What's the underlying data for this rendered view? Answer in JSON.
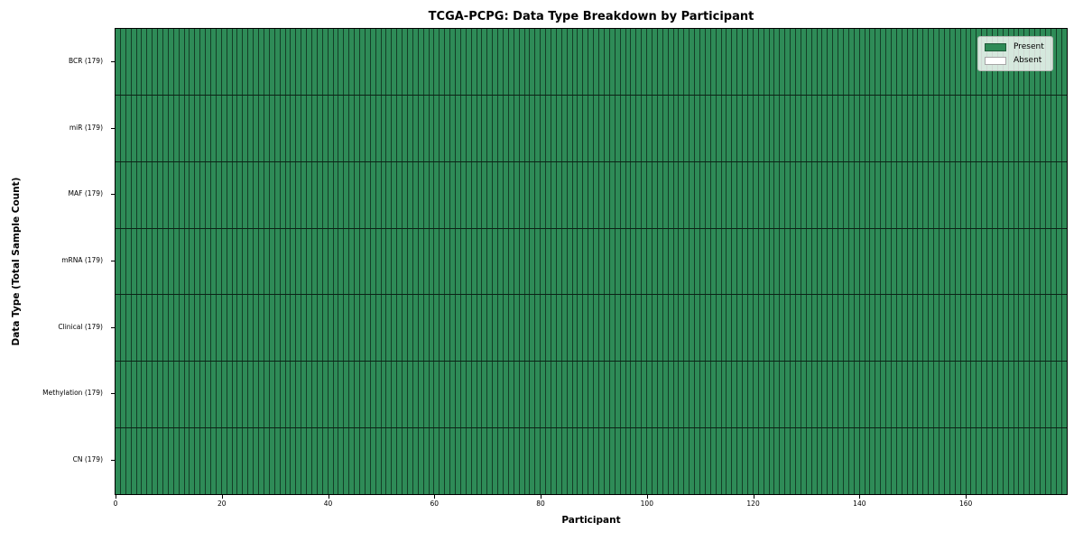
{
  "chart_data": {
    "type": "heatmap",
    "title": "TCGA-PCPG: Data Type Breakdown by Participant",
    "xlabel": "Participant",
    "ylabel": "Data Type (Total Sample Count)",
    "n_participants": 179,
    "xlim": [
      0,
      179
    ],
    "xticks": [
      0,
      20,
      40,
      60,
      80,
      100,
      120,
      140,
      160
    ],
    "rows": [
      {
        "label": "BCR (179)",
        "present": 179,
        "absent": 0
      },
      {
        "label": "miR (179)",
        "present": 179,
        "absent": 0
      },
      {
        "label": "MAF (179)",
        "present": 179,
        "absent": 0
      },
      {
        "label": "mRNA (179)",
        "present": 179,
        "absent": 0
      },
      {
        "label": "Clinical (179)",
        "present": 179,
        "absent": 0
      },
      {
        "label": "Methylation (179)",
        "present": 179,
        "absent": 0
      },
      {
        "label": "CN (179)",
        "present": 179,
        "absent": 0
      }
    ],
    "legend": [
      {
        "label": "Present",
        "color": "#2e8b57"
      },
      {
        "label": "Absent",
        "color": "#ffffff"
      }
    ],
    "legend_position": "upper right",
    "colors": {
      "present": "#2e8b57",
      "absent": "#ffffff",
      "cell_edge": "rgba(0,0,0,0.55)",
      "row_edge": "rgba(0,0,0,0.75)",
      "plot_border": "#000000",
      "background": "#ffffff"
    },
    "grid": "cell borders only"
  }
}
